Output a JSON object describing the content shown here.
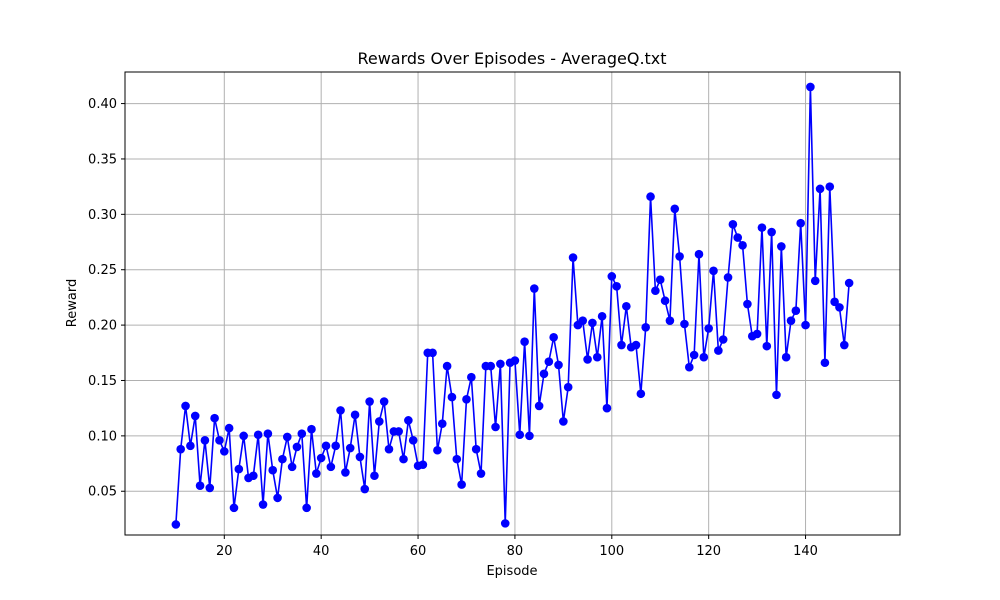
{
  "chart_data": {
    "type": "line",
    "title": "Rewards Over Episodes - AverageQ.txt",
    "xlabel": "Episode",
    "ylabel": "Reward",
    "xlim": [
      -0.5,
      159.5
    ],
    "ylim": [
      0.0105,
      0.4285
    ],
    "xticks": [
      20,
      40,
      60,
      80,
      100,
      120,
      140
    ],
    "yticks": [
      0.05,
      0.1,
      0.15,
      0.2,
      0.25,
      0.3,
      0.35,
      0.4
    ],
    "ytick_labels": [
      "0.05",
      "0.10",
      "0.15",
      "0.20",
      "0.25",
      "0.30",
      "0.35",
      "0.40"
    ],
    "grid": true,
    "series": [
      {
        "color": "#0000ff",
        "marker": "circle",
        "x": [
          10,
          11,
          12,
          13,
          14,
          15,
          16,
          17,
          18,
          19,
          20,
          21,
          22,
          23,
          24,
          25,
          26,
          27,
          28,
          29,
          30,
          31,
          32,
          33,
          34,
          35,
          36,
          37,
          38,
          39,
          40,
          41,
          42,
          43,
          44,
          45,
          46,
          47,
          48,
          49,
          50,
          51,
          52,
          53,
          54,
          55,
          56,
          57,
          58,
          59,
          60,
          61,
          62,
          63,
          64,
          65,
          66,
          67,
          68,
          69,
          70,
          71,
          72,
          73,
          74,
          75,
          76,
          77,
          78,
          79,
          80,
          81,
          82,
          83,
          84,
          85,
          86,
          87,
          88,
          89,
          90,
          91,
          92,
          93,
          94,
          95,
          96,
          97,
          98,
          99,
          100,
          101,
          102,
          103,
          104,
          105,
          106,
          107,
          108,
          109,
          110,
          111,
          112,
          113,
          114,
          115,
          116,
          117,
          118,
          119,
          120,
          121,
          122,
          123,
          124,
          125,
          126,
          127,
          128,
          129,
          130,
          131,
          132,
          133,
          134,
          135,
          136,
          137,
          138,
          139,
          140,
          141,
          142,
          143,
          144,
          145,
          146,
          147,
          148,
          149
        ],
        "y": [
          0.02,
          0.088,
          0.127,
          0.091,
          0.118,
          0.055,
          0.096,
          0.053,
          0.116,
          0.096,
          0.086,
          0.107,
          0.035,
          0.07,
          0.1,
          0.062,
          0.064,
          0.101,
          0.038,
          0.102,
          0.069,
          0.044,
          0.079,
          0.099,
          0.072,
          0.09,
          0.102,
          0.035,
          0.106,
          0.066,
          0.08,
          0.091,
          0.072,
          0.091,
          0.123,
          0.067,
          0.089,
          0.119,
          0.081,
          0.052,
          0.131,
          0.064,
          0.113,
          0.131,
          0.088,
          0.104,
          0.104,
          0.079,
          0.114,
          0.096,
          0.073,
          0.074,
          0.175,
          0.175,
          0.087,
          0.111,
          0.163,
          0.135,
          0.079,
          0.056,
          0.133,
          0.153,
          0.088,
          0.066,
          0.163,
          0.163,
          0.108,
          0.165,
          0.021,
          0.166,
          0.168,
          0.101,
          0.185,
          0.1,
          0.233,
          0.127,
          0.156,
          0.167,
          0.189,
          0.164,
          0.113,
          0.144,
          0.261,
          0.2,
          0.204,
          0.169,
          0.202,
          0.171,
          0.208,
          0.125,
          0.244,
          0.235,
          0.182,
          0.217,
          0.18,
          0.182,
          0.138,
          0.198,
          0.316,
          0.231,
          0.241,
          0.222,
          0.204,
          0.305,
          0.262,
          0.201,
          0.162,
          0.173,
          0.264,
          0.171,
          0.197,
          0.249,
          0.177,
          0.187,
          0.243,
          0.291,
          0.279,
          0.272,
          0.219,
          0.19,
          0.192,
          0.288,
          0.181,
          0.284,
          0.137,
          0.271,
          0.171,
          0.204,
          0.213,
          0.292,
          0.2,
          0.415,
          0.24,
          0.323,
          0.166,
          0.325,
          0.221,
          0.216,
          0.182,
          0.238
        ]
      }
    ]
  }
}
